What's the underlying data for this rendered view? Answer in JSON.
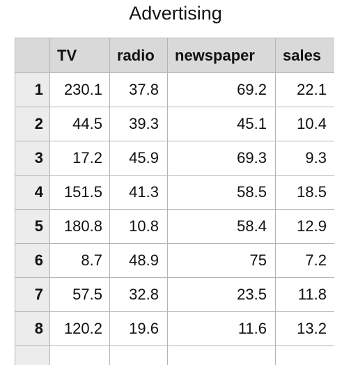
{
  "sheet": {
    "title": "Advertising"
  },
  "table": {
    "columns": [
      "TV",
      "radio",
      "newspaper",
      "sales"
    ],
    "rows": [
      {
        "index": "1",
        "cells": [
          "230.1",
          "37.8",
          "69.2",
          "22.1"
        ]
      },
      {
        "index": "2",
        "cells": [
          "44.5",
          "39.3",
          "45.1",
          "10.4"
        ]
      },
      {
        "index": "3",
        "cells": [
          "17.2",
          "45.9",
          "69.3",
          "9.3"
        ]
      },
      {
        "index": "4",
        "cells": [
          "151.5",
          "41.3",
          "58.5",
          "18.5"
        ]
      },
      {
        "index": "5",
        "cells": [
          "180.8",
          "10.8",
          "58.4",
          "12.9"
        ]
      },
      {
        "index": "6",
        "cells": [
          "8.7",
          "48.9",
          "75",
          "7.2"
        ]
      },
      {
        "index": "7",
        "cells": [
          "57.5",
          "32.8",
          "23.5",
          "11.8"
        ]
      },
      {
        "index": "8",
        "cells": [
          "120.2",
          "19.6",
          "11.6",
          "13.2"
        ]
      },
      {
        "index": "",
        "cells": [
          "",
          "",
          "",
          ""
        ]
      }
    ]
  },
  "colors": {
    "header_bg": "#d9d9d9",
    "index_bg": "#ececec",
    "grid_line": "#b4b4b4"
  }
}
